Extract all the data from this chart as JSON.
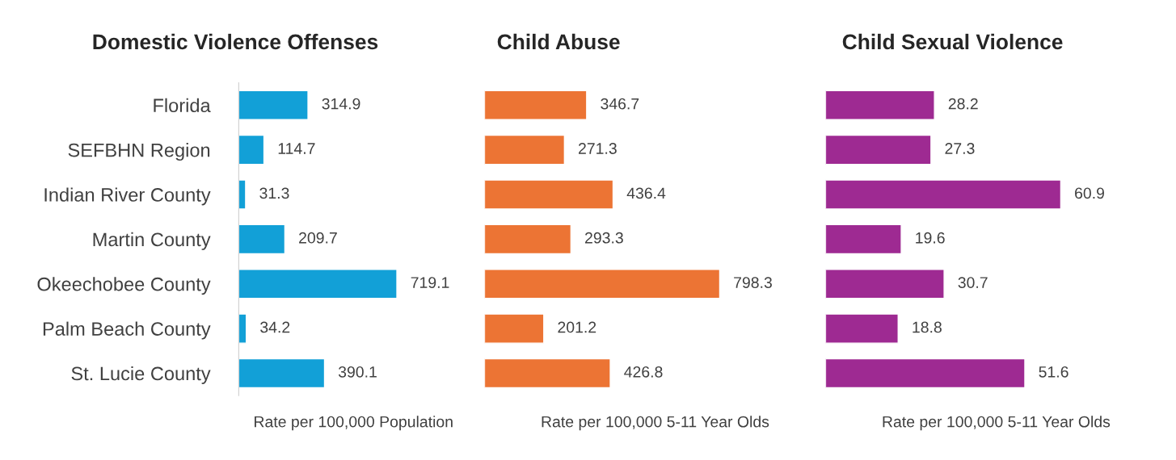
{
  "chart_data": [
    {
      "type": "bar",
      "orientation": "horizontal",
      "title": "Domestic Violence Offenses",
      "xlabel": "Rate per 100,000 Population",
      "categories": [
        "Florida",
        "SEFBHN Region",
        "Indian River County",
        "Martin County",
        "Okeechobee County",
        "Palm Beach County",
        "St. Lucie County"
      ],
      "series": [
        {
          "color": "#12a0d7",
          "values": [
            314.9,
            114.7,
            31.3,
            209.7,
            719.1,
            34.2,
            390.1
          ]
        }
      ],
      "data_labels": true,
      "tick_labels": "y",
      "grid": false,
      "legend": false
    },
    {
      "type": "bar",
      "orientation": "horizontal",
      "title": "Child Abuse",
      "xlabel": "Rate per 100,000 5-11 Year Olds",
      "series": [
        {
          "color": "#ec7434",
          "values": [
            346.7,
            271.3,
            436.4,
            293.3,
            798.3,
            201.2,
            426.8
          ]
        }
      ],
      "data_labels": true,
      "tick_labels": false,
      "grid": false,
      "legend": false
    },
    {
      "type": "bar",
      "orientation": "horizontal",
      "title": "Child Sexual Violence",
      "xlabel": "Rate per 100,000 5-11 Year Olds",
      "series": [
        {
          "color": "#9e2a92",
          "values": [
            28.2,
            27.3,
            60.9,
            19.6,
            30.7,
            18.8,
            51.6
          ]
        }
      ],
      "data_labels": true,
      "tick_labels": false,
      "grid": false,
      "legend": false
    }
  ]
}
